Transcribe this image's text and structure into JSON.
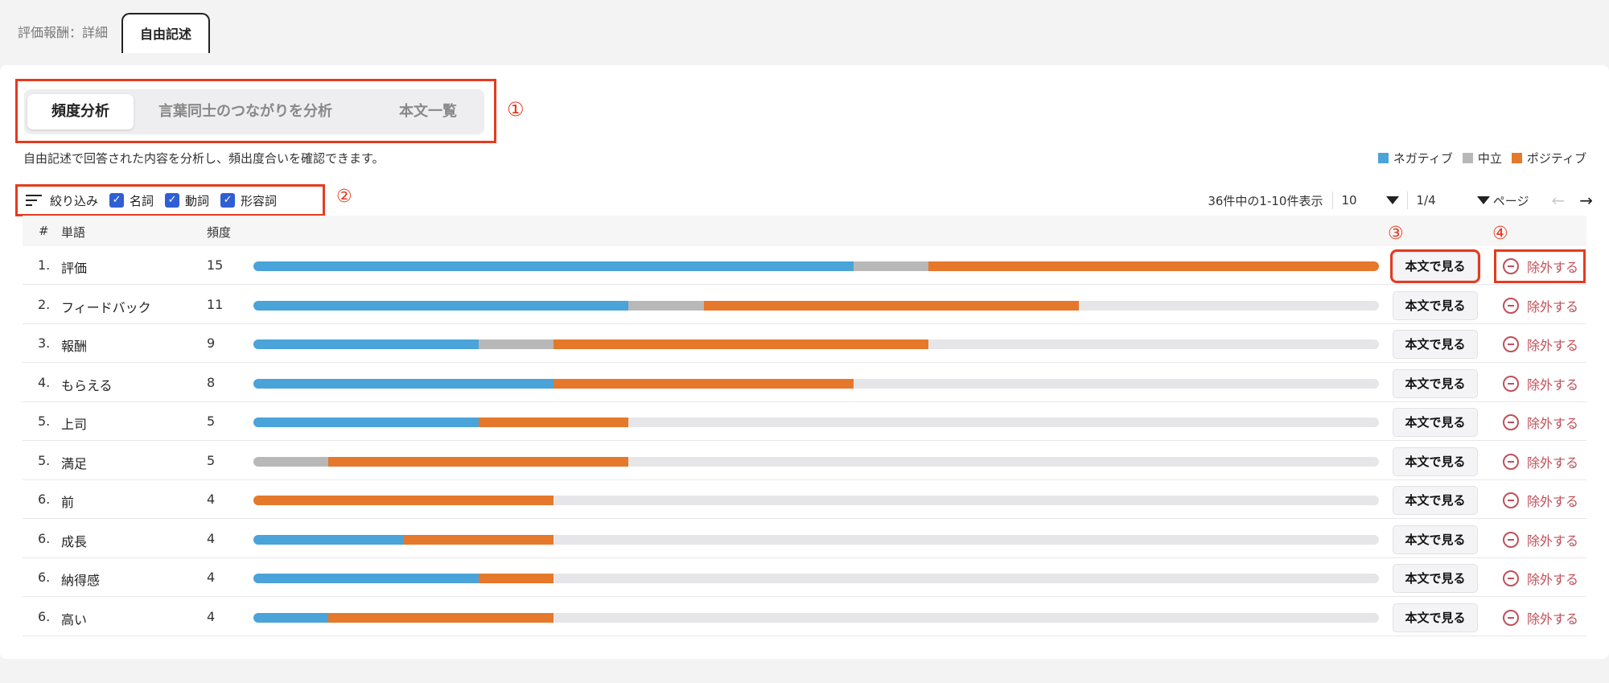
{
  "top_tabs": [
    "評価報酬：詳細",
    "自由記述"
  ],
  "analysis_tabs": [
    "頻度分析",
    "言葉同士のつながりを分析",
    "本文一覧"
  ],
  "markers": [
    "①",
    "②",
    "③",
    "④"
  ],
  "description": "自由記述で回答された内容を分析し、頻出度合いを確認できます。",
  "legend": [
    {
      "label": "ネガティブ",
      "color": "#4aa3d9"
    },
    {
      "label": "中立",
      "color": "#b8b8b8"
    },
    {
      "label": "ポジティブ",
      "color": "#e5782a"
    }
  ],
  "filter": {
    "label": "絞り込み",
    "checkboxes": [
      {
        "label": "名詞",
        "checked": true
      },
      {
        "label": "動詞",
        "checked": true
      },
      {
        "label": "形容詞",
        "checked": true
      }
    ]
  },
  "pagination": {
    "count_text": "36件中の1-10件表示",
    "per_page": "10",
    "page": "1/4",
    "page_label": "ページ"
  },
  "table": {
    "headers": {
      "rank": "#",
      "word": "単語",
      "freq": "頻度"
    },
    "max_freq": 15,
    "view_label": "本文で見る",
    "exclude_label": "除外する",
    "rows": [
      {
        "rank": "1.",
        "word": "評価",
        "freq": "15",
        "neg": 8,
        "neu": 1,
        "pos": 6
      },
      {
        "rank": "2.",
        "word": "フィードバック",
        "freq": "11",
        "neg": 5,
        "neu": 1,
        "pos": 5
      },
      {
        "rank": "3.",
        "word": "報酬",
        "freq": "9",
        "neg": 3,
        "neu": 1,
        "pos": 5
      },
      {
        "rank": "4.",
        "word": "もらえる",
        "freq": "8",
        "neg": 4,
        "neu": 0,
        "pos": 4
      },
      {
        "rank": "5.",
        "word": "上司",
        "freq": "5",
        "neg": 3,
        "neu": 0,
        "pos": 2
      },
      {
        "rank": "5.",
        "word": "満足",
        "freq": "5",
        "neg": 0,
        "neu": 1,
        "pos": 4
      },
      {
        "rank": "6.",
        "word": "前",
        "freq": "4",
        "neg": 0,
        "neu": 0,
        "pos": 4
      },
      {
        "rank": "6.",
        "word": "成長",
        "freq": "4",
        "neg": 2,
        "neu": 0,
        "pos": 2
      },
      {
        "rank": "6.",
        "word": "納得感",
        "freq": "4",
        "neg": 3,
        "neu": 0,
        "pos": 1
      },
      {
        "rank": "6.",
        "word": "高い",
        "freq": "4",
        "neg": 1,
        "neu": 0,
        "pos": 3
      }
    ]
  }
}
